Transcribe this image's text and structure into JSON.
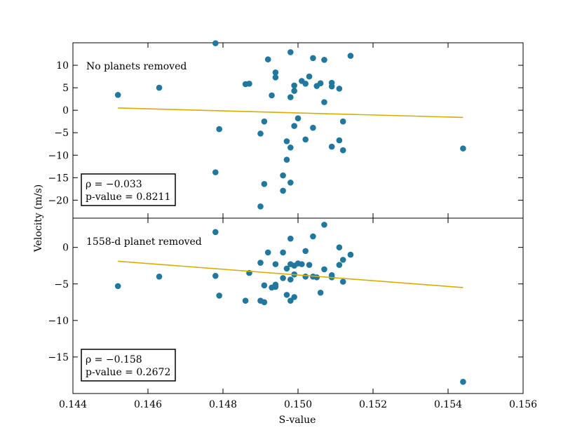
{
  "chart_data": {
    "type": "scatter",
    "xlabel": "S-value",
    "ylabel": "Velocity (m/s)",
    "xlim": [
      0.144,
      0.156
    ],
    "xticks": [
      "0.144",
      "0.146",
      "0.148",
      "0.150",
      "0.152",
      "0.154",
      "0.156"
    ],
    "xtick_values": [
      0.144,
      0.146,
      0.148,
      0.15,
      0.152,
      0.154,
      0.156
    ],
    "colors": {
      "points": "#21789e",
      "fit": "#d9ad00",
      "axis": "#000000"
    },
    "panels": [
      {
        "label": "No planets removed",
        "ylim": [
          -24,
          15
        ],
        "yticks": [
          10,
          5,
          0,
          -5,
          -10,
          -15,
          -20
        ],
        "ytick_labels": [
          "10",
          "5",
          "0",
          "−5",
          "−10",
          "−15",
          "−20"
        ],
        "rho_text": "ρ = −0.033",
        "pvalue_text": "p-value = 0.8211",
        "fit": {
          "x": [
            0.1452,
            0.1544
          ],
          "y": [
            0.5,
            -1.6
          ]
        },
        "points": [
          {
            "x": 0.1452,
            "y": 3.4
          },
          {
            "x": 0.1463,
            "y": 5.0
          },
          {
            "x": 0.1478,
            "y": 14.9
          },
          {
            "x": 0.1478,
            "y": -13.8
          },
          {
            "x": 0.1479,
            "y": -4.2
          },
          {
            "x": 0.1486,
            "y": 5.8
          },
          {
            "x": 0.1487,
            "y": 5.9
          },
          {
            "x": 0.149,
            "y": -5.2
          },
          {
            "x": 0.149,
            "y": -21.4
          },
          {
            "x": 0.1491,
            "y": -2.5
          },
          {
            "x": 0.1491,
            "y": -16.4
          },
          {
            "x": 0.1492,
            "y": 11.3
          },
          {
            "x": 0.1493,
            "y": 3.3
          },
          {
            "x": 0.1494,
            "y": 8.4
          },
          {
            "x": 0.1494,
            "y": 7.3
          },
          {
            "x": 0.1496,
            "y": -14.5
          },
          {
            "x": 0.1496,
            "y": -17.9
          },
          {
            "x": 0.1497,
            "y": -6.9
          },
          {
            "x": 0.1497,
            "y": -11.0
          },
          {
            "x": 0.1498,
            "y": 12.9
          },
          {
            "x": 0.1498,
            "y": 2.9
          },
          {
            "x": 0.1498,
            "y": -8.3
          },
          {
            "x": 0.1498,
            "y": -16.1
          },
          {
            "x": 0.1499,
            "y": 5.5
          },
          {
            "x": 0.1499,
            "y": 4.3
          },
          {
            "x": 0.1499,
            "y": -3.5
          },
          {
            "x": 0.15,
            "y": -1.8
          },
          {
            "x": 0.1501,
            "y": 6.5
          },
          {
            "x": 0.1502,
            "y": 5.9
          },
          {
            "x": 0.1502,
            "y": -6.5
          },
          {
            "x": 0.1503,
            "y": 7.5
          },
          {
            "x": 0.1504,
            "y": 11.6
          },
          {
            "x": 0.1504,
            "y": -3.9
          },
          {
            "x": 0.1505,
            "y": 5.4
          },
          {
            "x": 0.1506,
            "y": 6.0
          },
          {
            "x": 0.1507,
            "y": 11.2
          },
          {
            "x": 0.1507,
            "y": 1.8
          },
          {
            "x": 0.1509,
            "y": 6.1
          },
          {
            "x": 0.1509,
            "y": 5.3
          },
          {
            "x": 0.1509,
            "y": -8.1
          },
          {
            "x": 0.1511,
            "y": 4.8
          },
          {
            "x": 0.1511,
            "y": -6.7
          },
          {
            "x": 0.1512,
            "y": -2.5
          },
          {
            "x": 0.1512,
            "y": -8.9
          },
          {
            "x": 0.1514,
            "y": 12.1
          },
          {
            "x": 0.1544,
            "y": -8.5
          }
        ]
      },
      {
        "label": "1558-d planet removed",
        "ylim": [
          -20,
          4
        ],
        "yticks": [
          0,
          -5,
          -10,
          -15
        ],
        "ytick_labels": [
          "0",
          "−5",
          "−10",
          "−15"
        ],
        "rho_text": "ρ = −0.158",
        "pvalue_text": "p-value = 0.2672",
        "fit": {
          "x": [
            0.1452,
            0.1544
          ],
          "y": [
            -1.9,
            -5.5
          ]
        },
        "points": [
          {
            "x": 0.1452,
            "y": -5.3
          },
          {
            "x": 0.1463,
            "y": -4.0
          },
          {
            "x": 0.1478,
            "y": 2.1
          },
          {
            "x": 0.1478,
            "y": -3.9
          },
          {
            "x": 0.1479,
            "y": -6.6
          },
          {
            "x": 0.1486,
            "y": -7.3
          },
          {
            "x": 0.1487,
            "y": -3.5
          },
          {
            "x": 0.149,
            "y": -2.1
          },
          {
            "x": 0.149,
            "y": -7.3
          },
          {
            "x": 0.1491,
            "y": -5.2
          },
          {
            "x": 0.1491,
            "y": -7.5
          },
          {
            "x": 0.1492,
            "y": -0.7
          },
          {
            "x": 0.1493,
            "y": -5.5
          },
          {
            "x": 0.1494,
            "y": -2.3
          },
          {
            "x": 0.1494,
            "y": -5.1
          },
          {
            "x": 0.1494,
            "y": -5.4
          },
          {
            "x": 0.1496,
            "y": -4.2
          },
          {
            "x": 0.1496,
            "y": -0.7
          },
          {
            "x": 0.1497,
            "y": -2.9
          },
          {
            "x": 0.1497,
            "y": -6.5
          },
          {
            "x": 0.1498,
            "y": 1.2
          },
          {
            "x": 0.1498,
            "y": -2.3
          },
          {
            "x": 0.1498,
            "y": -4.4
          },
          {
            "x": 0.1498,
            "y": -7.3
          },
          {
            "x": 0.1499,
            "y": -2.5
          },
          {
            "x": 0.1499,
            "y": -3.7
          },
          {
            "x": 0.1499,
            "y": -6.8
          },
          {
            "x": 0.15,
            "y": -2.2
          },
          {
            "x": 0.1501,
            "y": -2.3
          },
          {
            "x": 0.1502,
            "y": -0.5
          },
          {
            "x": 0.1502,
            "y": -4.0
          },
          {
            "x": 0.1503,
            "y": -2.4
          },
          {
            "x": 0.1504,
            "y": 1.5
          },
          {
            "x": 0.1504,
            "y": -4.0
          },
          {
            "x": 0.1505,
            "y": -4.1
          },
          {
            "x": 0.1506,
            "y": -6.2
          },
          {
            "x": 0.1507,
            "y": 3.1
          },
          {
            "x": 0.1507,
            "y": -3.0
          },
          {
            "x": 0.1509,
            "y": -3.8
          },
          {
            "x": 0.1509,
            "y": -4.1
          },
          {
            "x": 0.1511,
            "y": 0.0
          },
          {
            "x": 0.1511,
            "y": -2.4
          },
          {
            "x": 0.1512,
            "y": -1.7
          },
          {
            "x": 0.1512,
            "y": -4.7
          },
          {
            "x": 0.1514,
            "y": -1.0
          },
          {
            "x": 0.1544,
            "y": -18.4
          }
        ]
      }
    ]
  }
}
